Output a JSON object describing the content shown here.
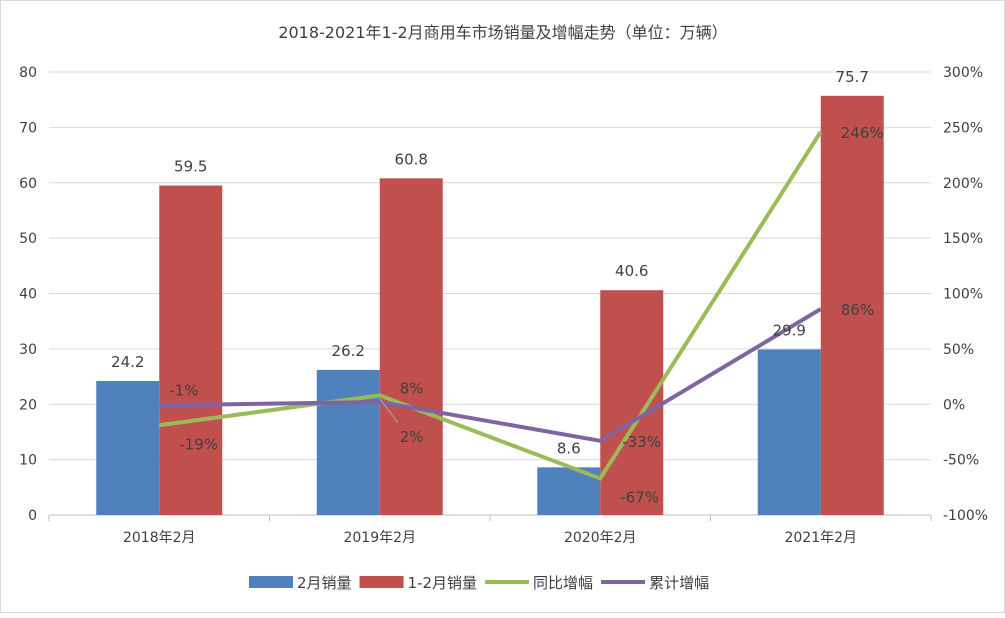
{
  "chart_data": {
    "type": "bar",
    "title": "2018-2021年1-2月商用车市场销量及增幅走势（单位：万辆）",
    "categories": [
      "2018年2月",
      "2019年2月",
      "2020年2月",
      "2021年2月"
    ],
    "y_left": {
      "ylim": [
        0,
        80
      ],
      "ticks": [
        "0",
        "10",
        "20",
        "30",
        "40",
        "50",
        "60",
        "70",
        "80"
      ]
    },
    "y_right": {
      "ylim": [
        -100,
        300
      ],
      "ticks": [
        "-100%",
        "-50%",
        "0%",
        "50%",
        "100%",
        "150%",
        "200%",
        "250%",
        "300%"
      ]
    },
    "grid": true,
    "legend_position": "bottom",
    "series": [
      {
        "name": "2月销量",
        "type": "bar",
        "axis": "left",
        "color": "#4f81bd",
        "values": [
          24.2,
          26.2,
          8.6,
          29.9
        ],
        "labels": [
          "24.2",
          "26.2",
          "8.6",
          "29.9"
        ]
      },
      {
        "name": "1-2月销量",
        "type": "bar",
        "axis": "left",
        "color": "#c0504d",
        "values": [
          59.5,
          60.8,
          40.6,
          75.7
        ],
        "labels": [
          "59.5",
          "60.8",
          "40.6",
          "75.7"
        ]
      },
      {
        "name": "同比增幅",
        "type": "line",
        "axis": "right",
        "color": "#9bbb59",
        "values": [
          -19,
          8,
          -67,
          246
        ],
        "labels": [
          "-19%",
          "8%",
          "-67%",
          "246%"
        ]
      },
      {
        "name": "累计增幅",
        "type": "line",
        "axis": "right",
        "color": "#8064a2",
        "values": [
          -1,
          2,
          -33,
          86
        ],
        "labels": [
          "-1%",
          "2%",
          "-33%",
          "86%"
        ]
      }
    ]
  }
}
